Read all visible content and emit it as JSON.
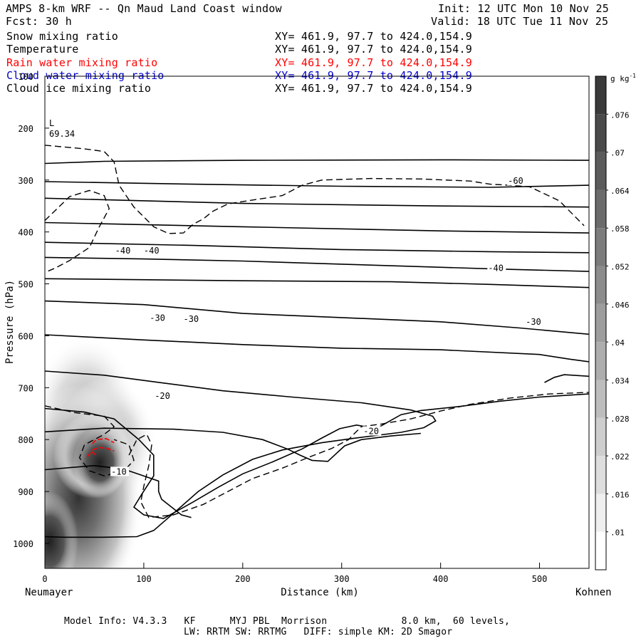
{
  "header": {
    "title": "AMPS 8-km WRF -- Qn Maud Land Coast window",
    "init": "Init: 12 UTC Mon 10 Nov 25",
    "fcst_label": "Fcst:",
    "fcst_value": "30 h",
    "valid": "Valid: 18 UTC Tue 11 Nov 25"
  },
  "fields": [
    {
      "name": "Snow mixing ratio",
      "xy": "XY= 461.9, 97.7 to 424.0,154.9",
      "color": "#000000"
    },
    {
      "name": "Temperature",
      "xy": "XY= 461.9, 97.7 to 424.0,154.9",
      "color": "#000000"
    },
    {
      "name": "Rain water mixing ratio",
      "xy": "XY= 461.9, 97.7 to 424.0,154.9",
      "color": "#ff0000"
    },
    {
      "name": "Cloud water mixing ratio",
      "xy": "XY= 461.9, 97.7 to 424.0,154.9",
      "color": "#0000cc"
    },
    {
      "name": "Cloud ice mixing ratio",
      "xy": "XY= 461.9, 97.7 to 424.0,154.9",
      "color": "#000000"
    }
  ],
  "chart_data": {
    "type": "cross-section contour",
    "xlabel": "Distance (km)",
    "ylabel": "Pressure (hPa)",
    "xlim": [
      0,
      550
    ],
    "ylim": [
      1050,
      100
    ],
    "x_ticks": [
      0,
      100,
      200,
      300,
      400,
      500
    ],
    "y_ticks": [
      100,
      200,
      300,
      400,
      500,
      600,
      700,
      800,
      900,
      1000
    ],
    "left_station": "Neumayer",
    "right_station": "Kohnen",
    "marker": {
      "label": "L",
      "value": "69.34"
    },
    "colorbar": {
      "unit": "g kg",
      "unit_exp": "-1",
      "levels": [
        0.01,
        0.016,
        0.022,
        0.028,
        0.034,
        0.04,
        0.046,
        0.052,
        0.058,
        0.064,
        0.07,
        0.076
      ],
      "tick_labels": [
        ".01",
        ".016",
        ".022",
        ".028",
        ".034",
        ".04",
        ".046",
        ".052",
        ".058",
        ".064",
        ".07",
        ".076"
      ]
    },
    "temperature_labels": [
      {
        "text": "-60",
        "x": 468,
        "p": 302
      },
      {
        "text": "-40",
        "x": 71,
        "p": 436
      },
      {
        "text": "-40",
        "x": 100,
        "p": 436
      },
      {
        "text": "-40",
        "x": 448,
        "p": 470
      },
      {
        "text": "-30",
        "x": 106,
        "p": 566
      },
      {
        "text": "-30",
        "x": 140,
        "p": 568
      },
      {
        "text": "-30",
        "x": 486,
        "p": 573
      },
      {
        "text": "-20",
        "x": 111,
        "p": 716
      },
      {
        "text": "-20",
        "x": 322,
        "p": 784
      },
      {
        "text": "-10",
        "x": 67,
        "p": 862
      }
    ],
    "temperature_isotherms": [
      [
        [
          0,
          268
        ],
        [
          60,
          264
        ],
        [
          200,
          262
        ],
        [
          400,
          261
        ],
        [
          550,
          262
        ]
      ],
      [
        [
          0,
          303
        ],
        [
          150,
          308
        ],
        [
          300,
          312
        ],
        [
          450,
          314
        ],
        [
          550,
          310
        ]
      ],
      [
        [
          0,
          335
        ],
        [
          200,
          345
        ],
        [
          400,
          350
        ],
        [
          550,
          352
        ]
      ],
      [
        [
          0,
          382
        ],
        [
          200,
          390
        ],
        [
          400,
          398
        ],
        [
          550,
          402
        ]
      ],
      [
        [
          0,
          420
        ],
        [
          150,
          426
        ],
        [
          300,
          434
        ],
        [
          450,
          438
        ],
        [
          550,
          440
        ]
      ],
      [
        [
          0,
          449
        ],
        [
          100,
          452
        ],
        [
          200,
          456
        ],
        [
          300,
          462
        ],
        [
          450,
          471
        ],
        [
          550,
          476
        ]
      ],
      [
        [
          0,
          490
        ],
        [
          200,
          494
        ],
        [
          350,
          496
        ],
        [
          450,
          501
        ],
        [
          550,
          507
        ]
      ],
      [
        [
          0,
          533
        ],
        [
          100,
          540
        ],
        [
          200,
          557
        ],
        [
          300,
          565
        ],
        [
          400,
          573
        ],
        [
          480,
          585
        ],
        [
          550,
          597
        ]
      ],
      [
        [
          0,
          598
        ],
        [
          100,
          608
        ],
        [
          200,
          617
        ],
        [
          300,
          624
        ],
        [
          400,
          627
        ],
        [
          500,
          636
        ],
        [
          530,
          645
        ],
        [
          550,
          650
        ]
      ],
      [
        [
          0,
          668
        ],
        [
          60,
          676
        ],
        [
          120,
          691
        ],
        [
          180,
          706
        ],
        [
          250,
          718
        ],
        [
          320,
          729
        ],
        [
          370,
          743
        ],
        [
          392,
          755
        ],
        [
          395,
          764
        ],
        [
          383,
          777
        ],
        [
          360,
          786
        ],
        [
          310,
          798
        ],
        [
          280,
          806
        ],
        [
          240,
          820
        ],
        [
          210,
          838
        ],
        [
          180,
          868
        ],
        [
          155,
          900
        ],
        [
          130,
          942
        ],
        [
          110,
          975
        ],
        [
          93,
          987
        ],
        [
          60,
          988
        ],
        [
          20,
          988
        ],
        [
          0,
          987
        ]
      ],
      [
        [
          0,
          740
        ],
        [
          40,
          747
        ],
        [
          70,
          760
        ],
        [
          95,
          800
        ],
        [
          110,
          830
        ],
        [
          110,
          870
        ],
        [
          98,
          905
        ],
        [
          90,
          930
        ],
        [
          100,
          945
        ],
        [
          120,
          952
        ],
        [
          150,
          920
        ],
        [
          175,
          892
        ],
        [
          200,
          866
        ],
        [
          230,
          843
        ],
        [
          260,
          818
        ],
        [
          280,
          797
        ],
        [
          298,
          779
        ],
        [
          315,
          772
        ],
        [
          335,
          779
        ],
        [
          345,
          768
        ],
        [
          360,
          752
        ],
        [
          380,
          744
        ],
        [
          420,
          736
        ],
        [
          460,
          726
        ],
        [
          500,
          718
        ],
        [
          550,
          712
        ]
      ],
      [
        [
          0,
          785
        ],
        [
          60,
          778
        ],
        [
          130,
          780
        ],
        [
          180,
          786
        ],
        [
          220,
          800
        ],
        [
          245,
          818
        ],
        [
          258,
          830
        ],
        [
          270,
          840
        ],
        [
          286,
          842
        ],
        [
          295,
          826
        ],
        [
          303,
          812
        ],
        [
          320,
          800
        ],
        [
          350,
          793
        ],
        [
          380,
          788
        ]
      ],
      [
        [
          0,
          858
        ],
        [
          50,
          850
        ],
        [
          80,
          857
        ],
        [
          100,
          870
        ],
        [
          115,
          880
        ],
        [
          115,
          900
        ],
        [
          118,
          915
        ],
        [
          138,
          945
        ],
        [
          148,
          950
        ]
      ],
      [
        [
          505,
          690
        ],
        [
          515,
          680
        ],
        [
          525,
          675
        ],
        [
          550,
          678
        ]
      ]
    ],
    "snow_contours_dashed": [
      [
        [
          0,
          233
        ],
        [
          40,
          240
        ],
        [
          60,
          245
        ],
        [
          70,
          265
        ],
        [
          75,
          310
        ],
        [
          90,
          352
        ],
        [
          110,
          390
        ],
        [
          125,
          403
        ],
        [
          140,
          402
        ],
        [
          150,
          385
        ],
        [
          160,
          375
        ],
        [
          170,
          360
        ],
        [
          185,
          346
        ],
        [
          205,
          340
        ],
        [
          240,
          330
        ],
        [
          260,
          310
        ],
        [
          280,
          300
        ],
        [
          330,
          297
        ],
        [
          380,
          298
        ],
        [
          430,
          302
        ],
        [
          450,
          308
        ],
        [
          470,
          310
        ],
        [
          490,
          313
        ],
        [
          520,
          340
        ],
        [
          545,
          388
        ]
      ],
      [
        [
          0,
          378
        ],
        [
          25,
          332
        ],
        [
          45,
          320
        ],
        [
          60,
          330
        ],
        [
          65,
          355
        ],
        [
          55,
          390
        ],
        [
          45,
          430
        ],
        [
          25,
          455
        ],
        [
          10,
          470
        ],
        [
          0,
          478
        ]
      ],
      [
        [
          0,
          735
        ],
        [
          30,
          748
        ],
        [
          60,
          755
        ],
        [
          70,
          775
        ],
        [
          60,
          790
        ],
        [
          40,
          810
        ],
        [
          35,
          835
        ],
        [
          45,
          860
        ],
        [
          60,
          870
        ],
        [
          80,
          860
        ],
        [
          90,
          840
        ],
        [
          85,
          810
        ],
        [
          70,
          800
        ]
      ],
      [
        [
          85,
          830
        ],
        [
          93,
          800
        ],
        [
          103,
          790
        ],
        [
          108,
          810
        ],
        [
          105,
          850
        ],
        [
          100,
          890
        ],
        [
          97,
          920
        ],
        [
          105,
          950
        ],
        [
          130,
          945
        ],
        [
          160,
          925
        ],
        [
          185,
          900
        ],
        [
          210,
          875
        ],
        [
          240,
          855
        ],
        [
          268,
          833
        ],
        [
          290,
          817
        ],
        [
          307,
          800
        ],
        [
          313,
          788
        ],
        [
          320,
          775
        ],
        [
          340,
          770
        ],
        [
          370,
          760
        ],
        [
          400,
          745
        ],
        [
          430,
          732
        ],
        [
          470,
          720
        ],
        [
          510,
          712
        ],
        [
          550,
          709
        ]
      ]
    ],
    "rain_contours": [
      [
        [
          48,
          808
        ],
        [
          52,
          800
        ],
        [
          62,
          798
        ],
        [
          70,
          806
        ]
      ],
      [
        [
          48,
          820
        ],
        [
          55,
          815
        ],
        [
          63,
          817
        ],
        [
          70,
          822
        ]
      ],
      [
        [
          43,
          833
        ],
        [
          47,
          823
        ],
        [
          52,
          830
        ]
      ]
    ]
  }
}
